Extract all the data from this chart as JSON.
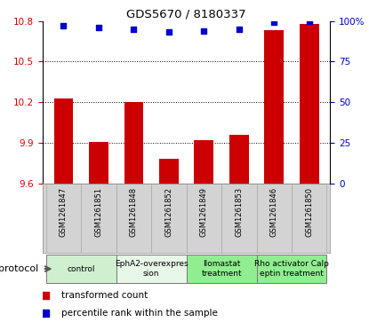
{
  "title": "GDS5670 / 8180337",
  "samples": [
    "GSM1261847",
    "GSM1261851",
    "GSM1261848",
    "GSM1261852",
    "GSM1261849",
    "GSM1261853",
    "GSM1261846",
    "GSM1261850"
  ],
  "red_values": [
    10.23,
    9.91,
    10.2,
    9.78,
    9.92,
    9.96,
    10.73,
    10.78
  ],
  "blue_values": [
    97,
    96,
    95,
    93,
    94,
    95,
    99,
    100
  ],
  "ylim_left": [
    9.6,
    10.8
  ],
  "ylim_right": [
    0,
    100
  ],
  "yticks_left": [
    9.6,
    9.9,
    10.2,
    10.5,
    10.8
  ],
  "yticks_right": [
    0,
    25,
    50,
    75,
    100
  ],
  "ytick_labels_left": [
    "9.6",
    "9.9",
    "10.2",
    "10.5",
    "10.8"
  ],
  "ytick_labels_right": [
    "0",
    "25",
    "50",
    "75",
    "100%"
  ],
  "groups": [
    {
      "label": "control",
      "samples": [
        0,
        1
      ],
      "color": "#cff0cf"
    },
    {
      "label": "EphA2-overexpres\nsion",
      "samples": [
        2,
        3
      ],
      "color": "#e8f8e8"
    },
    {
      "label": "Ilomastat\ntreatment",
      "samples": [
        4,
        5
      ],
      "color": "#90ee90"
    },
    {
      "label": "Rho activator Calp\neptin treatment",
      "samples": [
        6,
        7
      ],
      "color": "#90ee90"
    }
  ],
  "bar_color": "#cc0000",
  "dot_color": "#0000cc",
  "bar_width": 0.55,
  "legend_red_label": "transformed count",
  "legend_blue_label": "percentile rank within the sample",
  "protocol_label": "protocol",
  "background_plot": "#ffffff",
  "tick_color_left": "#cc0000",
  "tick_color_right": "#0000cc",
  "grid_color": "#000000",
  "sample_bg_color": "#d3d3d3",
  "sample_border_color": "#aaaaaa",
  "dot_size": 14,
  "dot_marker": "s"
}
